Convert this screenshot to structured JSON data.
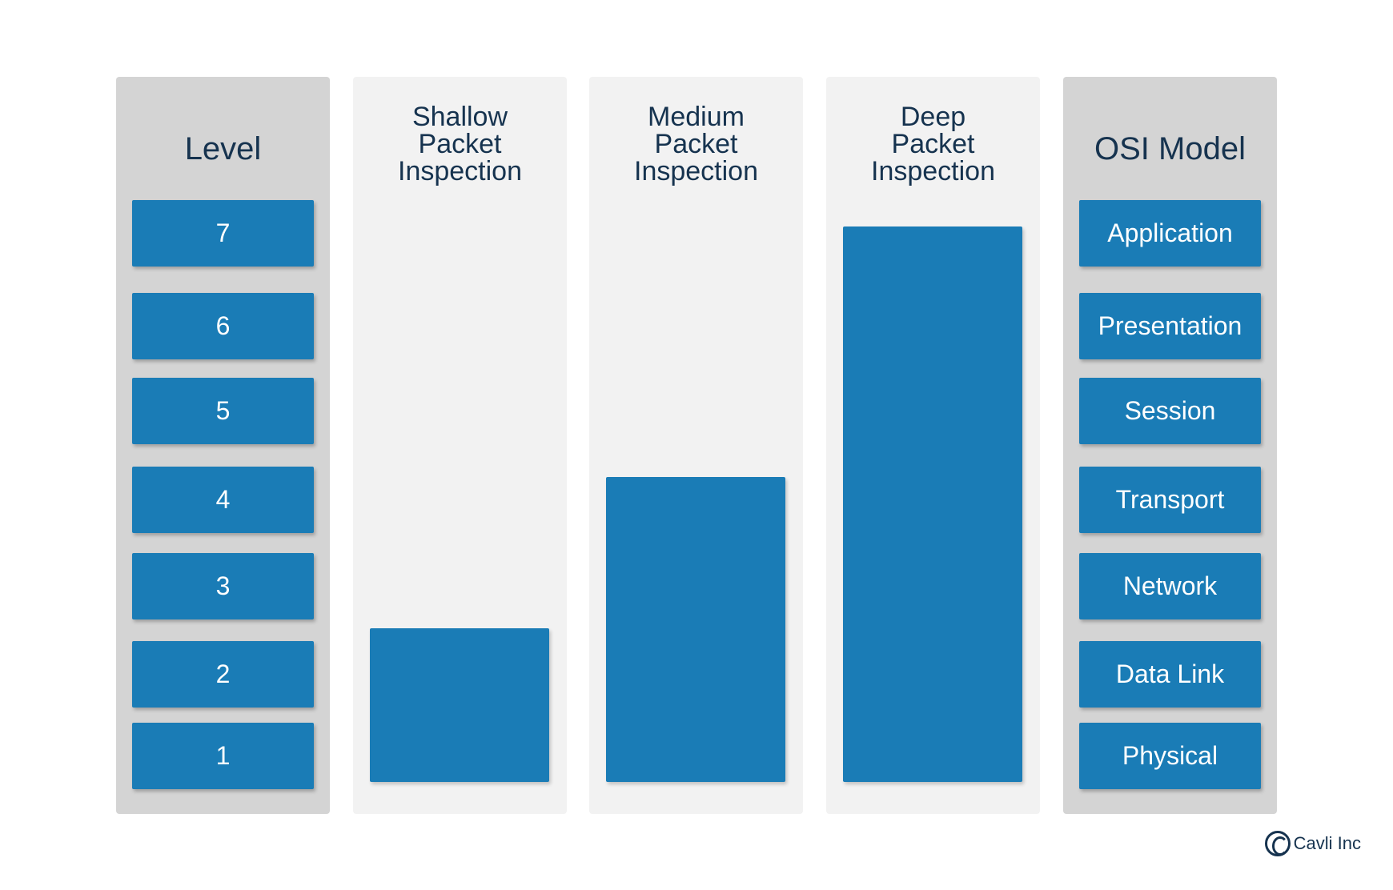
{
  "columns": {
    "level": {
      "title": "Level",
      "items": [
        "7",
        "6",
        "5",
        "4",
        "3",
        "2",
        "1"
      ]
    },
    "shallow": {
      "title_lines": [
        "Shallow",
        "Packet",
        "Inspection"
      ],
      "covered_layers": 2
    },
    "medium": {
      "title_lines": [
        "Medium",
        "Packet",
        "Inspection"
      ],
      "covered_layers": 4
    },
    "deep": {
      "title_lines": [
        "Deep",
        "Packet",
        "Inspection"
      ],
      "covered_layers": 7
    },
    "osi": {
      "title": "OSI Model",
      "items": [
        "Application",
        "Presentation",
        "Session",
        "Transport",
        "Network",
        "Data Link",
        "Physical"
      ]
    }
  },
  "brand": {
    "name": "Cavli Inc",
    "icon": "copyright-c-logo"
  },
  "colors": {
    "bar": "#1a7cb6",
    "dark_panel": "#d4d4d4",
    "light_panel": "#f2f2f2",
    "text": "#16334f"
  }
}
